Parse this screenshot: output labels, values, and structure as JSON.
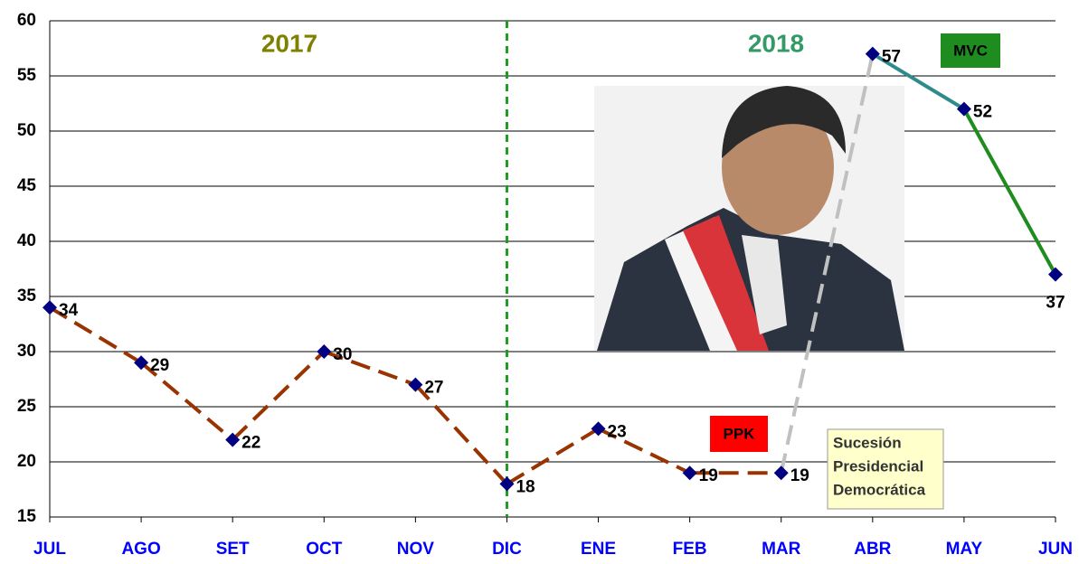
{
  "chart_data": {
    "type": "line",
    "categories": [
      "JUL",
      "AGO",
      "SET",
      "OCT",
      "NOV",
      "DIC",
      "ENE",
      "FEB",
      "MAR",
      "ABR",
      "MAY",
      "JUN"
    ],
    "series": [
      {
        "name": "PPK",
        "color": "#993300",
        "dash": true,
        "values": [
          34,
          29,
          22,
          30,
          27,
          18,
          23,
          19,
          19,
          null,
          null,
          null
        ]
      },
      {
        "color": "#c0c0c0",
        "dash": true,
        "markers": false,
        "values": [
          null,
          null,
          null,
          null,
          null,
          null,
          null,
          null,
          19,
          57,
          null,
          null
        ]
      },
      {
        "name": "MVC",
        "segment_colors": [
          "#2e8b8b",
          "#1e8c1e"
        ],
        "values": [
          null,
          null,
          null,
          null,
          null,
          null,
          null,
          null,
          null,
          57,
          52,
          37
        ]
      }
    ],
    "ylim": [
      15,
      60
    ],
    "yticks": [
      15,
      20,
      25,
      30,
      35,
      40,
      45,
      50,
      55,
      60
    ],
    "grid": true,
    "divider_category": "DIC",
    "divider_color": "#1e9c1e",
    "annotations": {
      "year_left": "2017",
      "year_right": "2018",
      "note": [
        "Sucesión",
        "Presidencial",
        "Democrática"
      ]
    },
    "marker_color": "#000080"
  }
}
